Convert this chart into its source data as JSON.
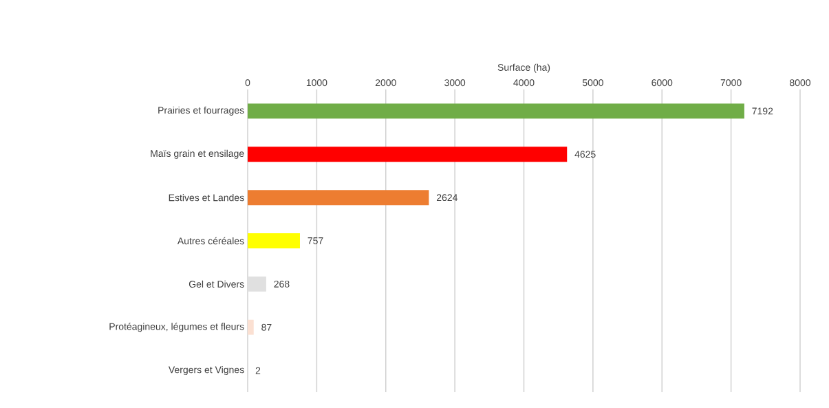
{
  "chart_data": {
    "type": "bar",
    "orientation": "horizontal",
    "xlabel": "Surface (ha)",
    "categories": [
      "Prairies et fourrages",
      "Maïs grain et ensilage",
      "Estives et Landes",
      "Autres céréales",
      "Gel et Divers",
      "Protéagineux, légumes et fleurs",
      "Vergers et Vignes"
    ],
    "values": [
      7192,
      4625,
      2624,
      757,
      268,
      87,
      2
    ],
    "colors": [
      "#70ad47",
      "#ff0000",
      "#ed7d31",
      "#ffff00",
      "#e0e0e0",
      "#fbe0d2",
      "#c9c9c9"
    ],
    "xlim": [
      0,
      8000
    ],
    "xticks": [
      0,
      1000,
      2000,
      3000,
      4000,
      5000,
      6000,
      7000,
      8000
    ],
    "grid": "x",
    "data_labels": true
  }
}
